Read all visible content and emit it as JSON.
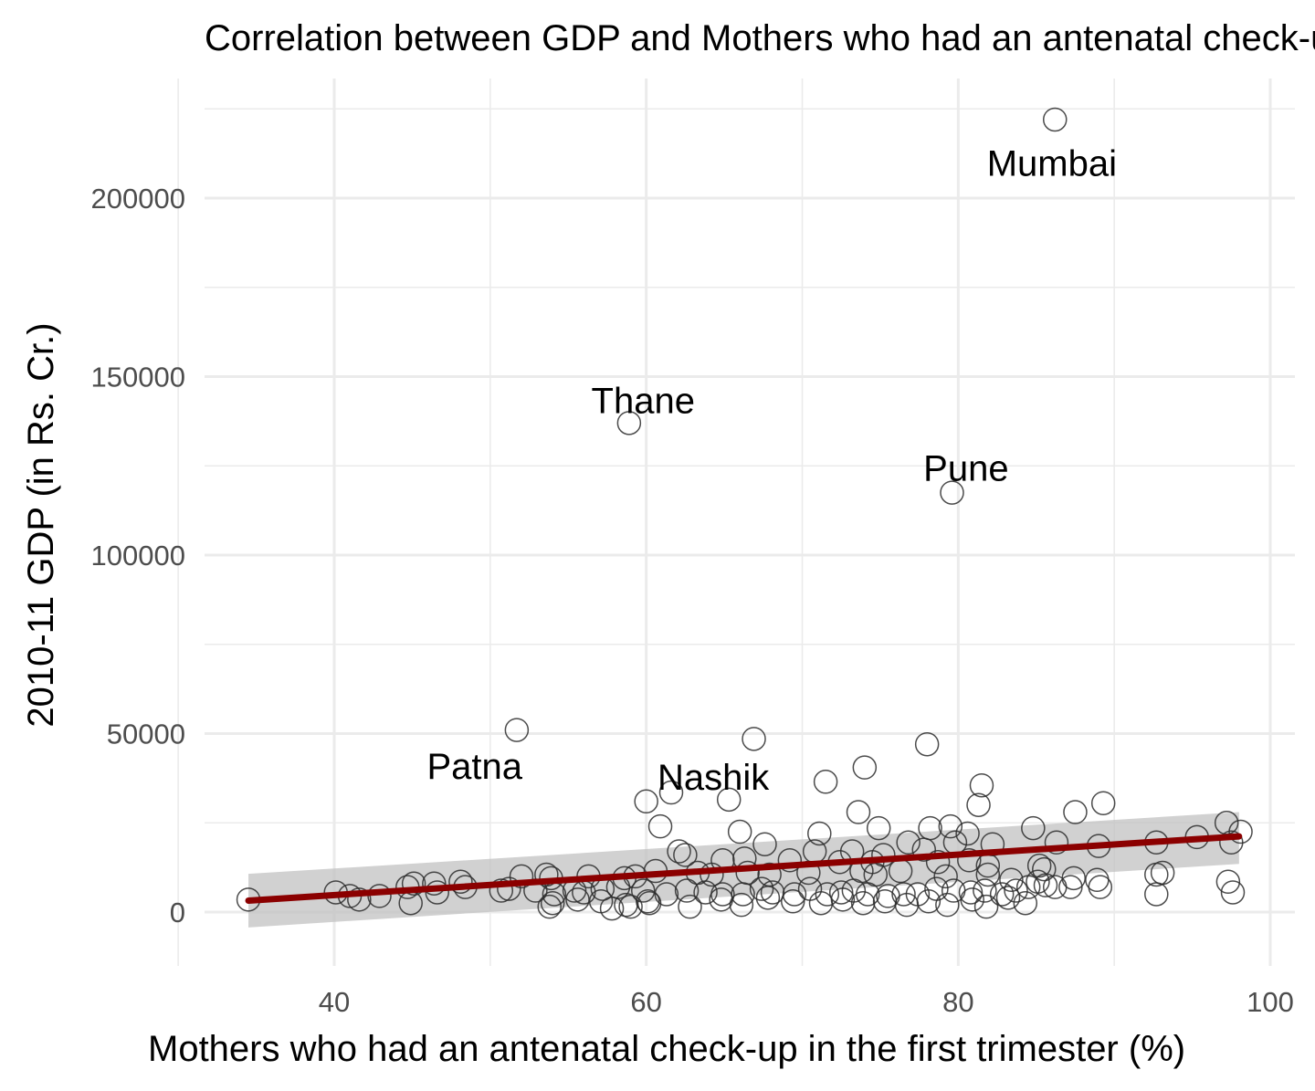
{
  "chart_data": {
    "type": "scatter",
    "title": "Correlation between GDP and Mothers who had an antenatal check-up in the first trimester",
    "xlabel": "Mothers who had an antenatal check-up in the first trimester (%)",
    "ylabel": "2010-11 GDP (in Rs. Cr.)",
    "xlim": [
      31,
      102
    ],
    "ylim": [
      -16000,
      233000
    ],
    "x_ticks": [
      40,
      60,
      80,
      100
    ],
    "y_ticks": [
      0,
      50000,
      100000,
      150000,
      200000
    ],
    "x_tick_labels": [
      "40",
      "60",
      "80",
      "100"
    ],
    "y_tick_labels": [
      "0",
      "50000",
      "100000",
      "150000",
      "200000"
    ],
    "grid": true,
    "legend": "none",
    "colors": {
      "points": "#2b2b2b",
      "trend": "#8b0000",
      "band": "#bfbfbf"
    },
    "annotations": [
      {
        "text": "Mumbai",
        "x": 86.0,
        "y": 209000
      },
      {
        "text": "Thane",
        "x": 59.8,
        "y": 142500
      },
      {
        "text": "Pune",
        "x": 80.5,
        "y": 123500
      },
      {
        "text": "Patna",
        "x": 49.0,
        "y": 40000
      },
      {
        "text": "Nashik",
        "x": 64.3,
        "y": 37000
      }
    ],
    "trend": {
      "x": [
        34.5,
        98
      ],
      "y": [
        3200,
        21200
      ],
      "ci_lower": [
        -4300,
        13500
      ],
      "ci_upper": [
        10700,
        28000
      ]
    },
    "points": [
      [
        86.2,
        222000
      ],
      [
        58.9,
        137000
      ],
      [
        79.6,
        117500
      ],
      [
        51.7,
        51000
      ],
      [
        66.9,
        48500
      ],
      [
        78.0,
        47000
      ],
      [
        74.0,
        40500
      ],
      [
        71.5,
        36500
      ],
      [
        81.5,
        35500
      ],
      [
        61.6,
        33500
      ],
      [
        60.0,
        31000
      ],
      [
        65.3,
        31500
      ],
      [
        81.3,
        30000
      ],
      [
        89.3,
        30500
      ],
      [
        87.5,
        28000
      ],
      [
        73.6,
        28000
      ],
      [
        60.9,
        24000
      ],
      [
        66.0,
        22500
      ],
      [
        71.1,
        22000
      ],
      [
        74.9,
        23500
      ],
      [
        78.2,
        23500
      ],
      [
        79.5,
        24000
      ],
      [
        80.6,
        22000
      ],
      [
        84.8,
        23500
      ],
      [
        97.2,
        25000
      ],
      [
        98.1,
        22500
      ],
      [
        95.3,
        21000
      ],
      [
        92.7,
        19500
      ],
      [
        86.3,
        19500
      ],
      [
        89.0,
        18500
      ],
      [
        97.5,
        19500
      ],
      [
        82.2,
        19000
      ],
      [
        79.8,
        19500
      ],
      [
        77.8,
        17500
      ],
      [
        76.8,
        19500
      ],
      [
        67.6,
        19000
      ],
      [
        70.8,
        17000
      ],
      [
        73.2,
        17000
      ],
      [
        75.2,
        16000
      ],
      [
        62.1,
        17000
      ],
      [
        62.5,
        16000
      ],
      [
        64.9,
        14500
      ],
      [
        66.3,
        15000
      ],
      [
        69.2,
        14500
      ],
      [
        72.4,
        14000
      ],
      [
        74.5,
        14000
      ],
      [
        78.7,
        14000
      ],
      [
        80.7,
        14500
      ],
      [
        81.9,
        13000
      ],
      [
        85.2,
        13000
      ],
      [
        85.5,
        12000
      ],
      [
        93.1,
        11000
      ],
      [
        92.7,
        10500
      ],
      [
        87.4,
        9500
      ],
      [
        88.9,
        9000
      ],
      [
        97.3,
        8500
      ],
      [
        52.0,
        10000
      ],
      [
        53.9,
        9500
      ],
      [
        53.6,
        10500
      ],
      [
        56.3,
        10000
      ],
      [
        58.6,
        9500
      ],
      [
        59.3,
        10000
      ],
      [
        60.6,
        11500
      ],
      [
        63.3,
        11000
      ],
      [
        64.2,
        10500
      ],
      [
        66.5,
        11000
      ],
      [
        67.9,
        10500
      ],
      [
        70.4,
        11000
      ],
      [
        73.8,
        11500
      ],
      [
        74.7,
        10500
      ],
      [
        76.3,
        11500
      ],
      [
        79.2,
        10000
      ],
      [
        81.9,
        10500
      ],
      [
        83.4,
        9000
      ],
      [
        85.1,
        8500
      ],
      [
        86.2,
        7000
      ],
      [
        89.1,
        7000
      ],
      [
        92.7,
        5000
      ],
      [
        97.6,
        5500
      ],
      [
        51.2,
        6500
      ],
      [
        52.9,
        6000
      ],
      [
        54.1,
        5000
      ],
      [
        55.4,
        6000
      ],
      [
        57.2,
        6500
      ],
      [
        58.2,
        7000
      ],
      [
        59.8,
        6000
      ],
      [
        61.3,
        5000
      ],
      [
        62.6,
        6000
      ],
      [
        63.8,
        5500
      ],
      [
        64.9,
        5000
      ],
      [
        66.2,
        5000
      ],
      [
        67.4,
        6500
      ],
      [
        68.1,
        5500
      ],
      [
        69.5,
        5000
      ],
      [
        70.5,
        6500
      ],
      [
        71.6,
        5000
      ],
      [
        72.5,
        5500
      ],
      [
        73.3,
        6000
      ],
      [
        74.2,
        5000
      ],
      [
        75.5,
        4500
      ],
      [
        76.5,
        5000
      ],
      [
        77.4,
        5000
      ],
      [
        78.6,
        6500
      ],
      [
        79.7,
        6000
      ],
      [
        80.8,
        5500
      ],
      [
        81.7,
        6000
      ],
      [
        82.8,
        5000
      ],
      [
        83.7,
        6000
      ],
      [
        84.5,
        7000
      ],
      [
        85.6,
        7500
      ],
      [
        87.2,
        7000
      ],
      [
        54.0,
        2500
      ],
      [
        55.6,
        3500
      ],
      [
        57.1,
        3000
      ],
      [
        58.7,
        2000
      ],
      [
        60.1,
        3000
      ],
      [
        62.8,
        1500
      ],
      [
        64.8,
        3500
      ],
      [
        66.1,
        2000
      ],
      [
        67.8,
        4000
      ],
      [
        69.4,
        3000
      ],
      [
        71.2,
        2500
      ],
      [
        72.6,
        3500
      ],
      [
        73.9,
        2500
      ],
      [
        75.3,
        3000
      ],
      [
        76.7,
        2000
      ],
      [
        78.1,
        3000
      ],
      [
        79.3,
        2000
      ],
      [
        80.9,
        3500
      ],
      [
        81.8,
        1500
      ],
      [
        83.2,
        4000
      ],
      [
        84.3,
        2500
      ],
      [
        57.8,
        1000
      ],
      [
        59.0,
        1500
      ],
      [
        60.2,
        2500
      ],
      [
        53.8,
        1500
      ],
      [
        34.5,
        3500
      ],
      [
        40.1,
        5500
      ],
      [
        41.0,
        4500
      ],
      [
        41.6,
        3500
      ],
      [
        42.9,
        4500
      ],
      [
        44.7,
        7000
      ],
      [
        45.1,
        8000
      ],
      [
        44.9,
        2500
      ],
      [
        46.4,
        8000
      ],
      [
        46.6,
        5500
      ],
      [
        48.1,
        8500
      ],
      [
        48.4,
        7000
      ],
      [
        50.7,
        6000
      ],
      [
        56.0,
        5500
      ]
    ]
  }
}
